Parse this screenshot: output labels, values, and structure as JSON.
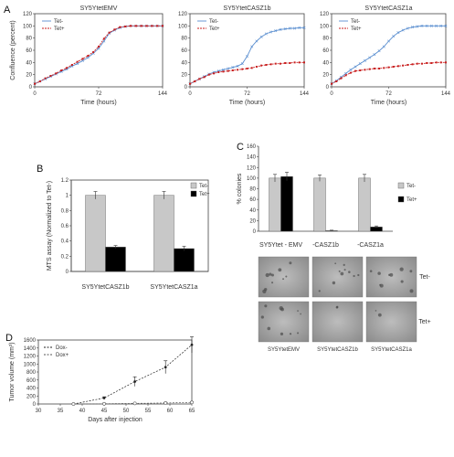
{
  "panel_labels": {
    "a": "A",
    "b": "B",
    "c": "C",
    "d": "D"
  },
  "colors": {
    "tet_minus_line": "#5b8fd0",
    "tet_plus_line": "#c81e1e",
    "bar_grey": "#c8c8c8",
    "bar_black": "#000000",
    "axis": "#444444"
  },
  "chart_data": [
    {
      "id": "A1",
      "type": "line",
      "title": "SY5YtetEMV",
      "xlabel": "Time (hours)",
      "ylabel": "Confluence (percent)",
      "xlim": [
        0,
        144
      ],
      "ylim": [
        0,
        120
      ],
      "xticks": [
        0,
        72,
        144
      ],
      "yticks": [
        0,
        20,
        40,
        60,
        80,
        100,
        120
      ],
      "legend": "top-left",
      "x": [
        0,
        6,
        12,
        18,
        24,
        30,
        36,
        42,
        48,
        54,
        60,
        66,
        72,
        78,
        84,
        90,
        96,
        102,
        108,
        114,
        120,
        126,
        132,
        138,
        144
      ],
      "series": [
        {
          "name": "Tet-",
          "values": [
            5,
            9,
            13,
            17,
            21,
            25,
            29,
            34,
            38,
            43,
            48,
            55,
            63,
            75,
            88,
            93,
            97,
            99,
            100,
            100,
            100,
            100,
            100,
            100,
            100
          ]
        },
        {
          "name": "Tet+",
          "values": [
            5,
            9,
            14,
            18,
            22,
            27,
            31,
            36,
            41,
            46,
            51,
            57,
            66,
            79,
            89,
            94,
            98,
            99,
            100,
            100,
            100,
            100,
            100,
            100,
            100
          ]
        }
      ]
    },
    {
      "id": "A2",
      "type": "line",
      "title": "SY5YtetCASZ1b",
      "xlabel": "Time (hours)",
      "ylabel": "",
      "xlim": [
        0,
        144
      ],
      "ylim": [
        0,
        120
      ],
      "xticks": [
        0,
        72,
        144
      ],
      "yticks": [
        0,
        20,
        40,
        60,
        80,
        100,
        120
      ],
      "legend": "top-left",
      "x": [
        0,
        6,
        12,
        18,
        24,
        30,
        36,
        42,
        48,
        54,
        60,
        66,
        72,
        78,
        84,
        90,
        96,
        102,
        108,
        114,
        120,
        126,
        132,
        138,
        144
      ],
      "series": [
        {
          "name": "Tet-",
          "values": [
            5,
            9,
            13,
            17,
            21,
            24,
            26,
            28,
            30,
            32,
            34,
            38,
            50,
            66,
            75,
            82,
            87,
            90,
            92,
            94,
            95,
            96,
            96,
            97,
            97
          ]
        },
        {
          "name": "Tet+",
          "values": [
            5,
            9,
            13,
            16,
            20,
            22,
            24,
            25,
            26,
            27,
            28,
            29,
            30,
            31,
            33,
            35,
            36,
            37,
            38,
            38,
            39,
            39,
            40,
            40,
            40
          ]
        }
      ]
    },
    {
      "id": "A3",
      "type": "line",
      "title": "SY5YtetCASZ1a",
      "xlabel": "Time (hours)",
      "ylabel": "",
      "xlim": [
        0,
        144
      ],
      "ylim": [
        0,
        120
      ],
      "xticks": [
        0,
        72,
        144
      ],
      "yticks": [
        0,
        20,
        40,
        60,
        80,
        100,
        120
      ],
      "legend": "top-left",
      "x": [
        0,
        6,
        12,
        18,
        24,
        30,
        36,
        42,
        48,
        54,
        60,
        66,
        72,
        78,
        84,
        90,
        96,
        102,
        108,
        114,
        120,
        126,
        132,
        138,
        144
      ],
      "series": [
        {
          "name": "Tet-",
          "values": [
            5,
            10,
            16,
            22,
            28,
            33,
            38,
            43,
            48,
            53,
            59,
            66,
            75,
            83,
            89,
            93,
            96,
            98,
            99,
            100,
            100,
            100,
            100,
            100,
            100
          ]
        },
        {
          "name": "Tet+",
          "values": [
            5,
            9,
            14,
            19,
            23,
            26,
            27,
            28,
            29,
            30,
            30,
            31,
            32,
            33,
            34,
            35,
            36,
            37,
            38,
            38,
            39,
            39,
            40,
            40,
            40
          ]
        }
      ]
    },
    {
      "id": "B",
      "type": "bar",
      "ylabel": "MTS assay (Normalized to Tet-)",
      "ylim": [
        0,
        1.2
      ],
      "yticks": [
        0,
        0.2,
        0.4,
        0.6,
        0.8,
        1,
        1.2
      ],
      "categories": [
        "SY5YtetCASZ1b",
        "SY5YtetCASZ1a"
      ],
      "legend": "top-right",
      "series": [
        {
          "name": "Tet-",
          "values": [
            1.0,
            1.0
          ],
          "errors": [
            0.05,
            0.05
          ]
        },
        {
          "name": "Tet+",
          "values": [
            0.32,
            0.3
          ],
          "errors": [
            0.02,
            0.03
          ]
        }
      ]
    },
    {
      "id": "C",
      "type": "bar",
      "ylabel": "% colonies",
      "ylim": [
        0,
        160
      ],
      "yticks": [
        0,
        20,
        40,
        60,
        80,
        100,
        120,
        140,
        160
      ],
      "categories": [
        "SY5Ytet - EMV",
        "-CASZ1b",
        "-CASZ1a"
      ],
      "legend": "right",
      "series": [
        {
          "name": "Tet-",
          "values": [
            100,
            100,
            100
          ],
          "errors": [
            7,
            6,
            7
          ]
        },
        {
          "name": "Tet+",
          "values": [
            103,
            1,
            8
          ],
          "errors": [
            8,
            1,
            2
          ]
        }
      ],
      "image_rows": [
        "Tet-",
        "Tet+"
      ],
      "image_cols": [
        "SY5YtetEMV",
        "SY5YtetCASZ1b",
        "SY5YtetCASZ1a"
      ]
    },
    {
      "id": "D",
      "type": "line",
      "xlabel": "Days after injection",
      "ylabel": "Tumor volume (mm³)",
      "xlim": [
        30,
        65
      ],
      "ylim": [
        0,
        1600
      ],
      "xticks": [
        30,
        35,
        40,
        45,
        50,
        55,
        60,
        65
      ],
      "yticks": [
        0,
        200,
        400,
        600,
        800,
        1000,
        1200,
        1400,
        1600
      ],
      "legend": "top-left",
      "x": [
        38,
        45,
        52,
        59,
        65
      ],
      "series": [
        {
          "name": "Dox-",
          "values": [
            0,
            150,
            560,
            920,
            1480
          ],
          "errors": [
            0,
            30,
            120,
            160,
            200
          ]
        },
        {
          "name": "Dox+",
          "values": [
            0,
            5,
            15,
            25,
            40
          ],
          "errors": [
            0,
            5,
            8,
            10,
            15
          ]
        }
      ]
    }
  ]
}
